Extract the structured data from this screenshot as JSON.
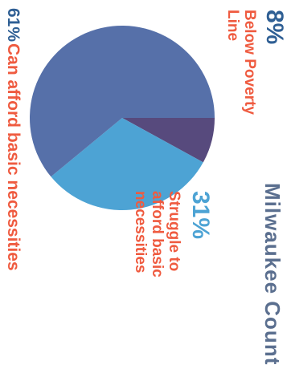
{
  "title": "Milwaukee Count",
  "chart_data": {
    "type": "pie",
    "slices": [
      {
        "pct": "8%",
        "value": 8,
        "label": "Below Poverty Line",
        "color": "#574a7d"
      },
      {
        "pct": "31%",
        "value": 31,
        "label": "Struggle to afford basic necessities",
        "color": "#4da3d4"
      },
      {
        "pct": "61%",
        "value": 61,
        "label": "Can afford basic necessities",
        "color": "#5670a9"
      }
    ]
  },
  "labels": {
    "below_pct": "8%",
    "below_text_1": "Below Poverty",
    "below_text_2": "Line",
    "struggle_pct": "31%",
    "struggle_text_1": "Struggle to",
    "struggle_text_2": "afford basic",
    "struggle_text_3": "necessities",
    "afford_pct": "61%",
    "afford_text": "Can afford basic necessities"
  }
}
